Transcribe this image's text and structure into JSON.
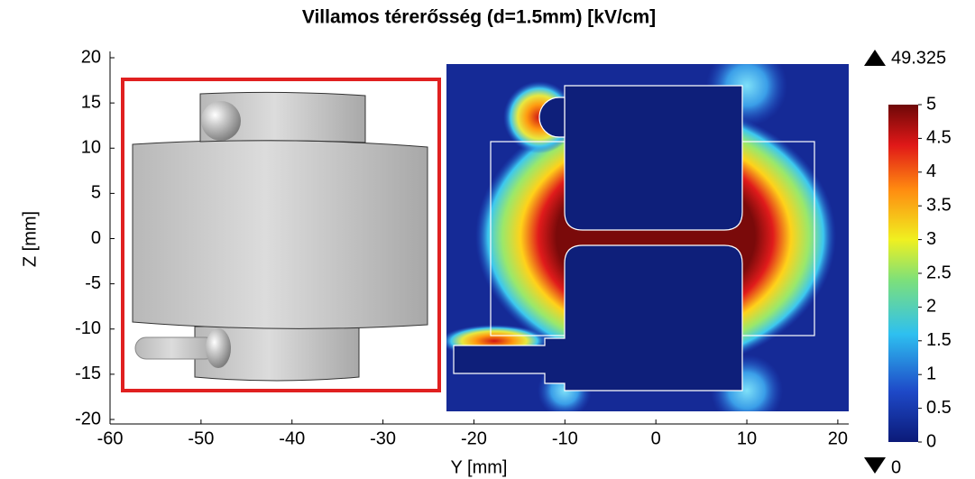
{
  "chart_data": {
    "type": "surface",
    "title": "Villamos térerősség (d=1.5mm) [kV/cm]",
    "xlabel": "Y [mm]",
    "ylabel": "Z [mm]",
    "xlim": [
      -60.2,
      21.2
    ],
    "ylim": [
      -20.5,
      20.7
    ],
    "xticks": [
      -60,
      -50,
      -40,
      -30,
      -20,
      -10,
      0,
      10,
      20
    ],
    "yticks": [
      -20,
      -15,
      -10,
      -5,
      0,
      5,
      10,
      15,
      20
    ],
    "colorbar": {
      "lim": [
        0,
        5
      ],
      "ticks": [
        0,
        0.5,
        1,
        1.5,
        2,
        2.5,
        3,
        3.5,
        4,
        4.5,
        5
      ],
      "max": 49.325,
      "min": 0
    }
  }
}
